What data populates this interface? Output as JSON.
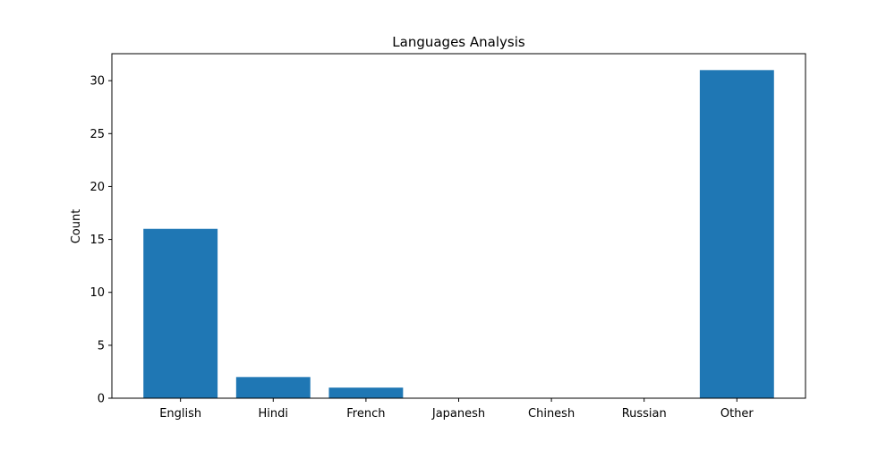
{
  "chart_data": {
    "type": "bar",
    "title": "Languages Analysis",
    "xlabel": "",
    "ylabel": "Count",
    "categories": [
      "English",
      "Hindi",
      "French",
      "Japanesh",
      "Chinesh",
      "Russian",
      "Other"
    ],
    "values": [
      16,
      2,
      1,
      0,
      0,
      0,
      31
    ],
    "ylim": [
      0,
      32.55
    ],
    "yticks": [
      0,
      5,
      10,
      15,
      20,
      25,
      30
    ],
    "grid": false,
    "colors": {
      "bar": "#1f77b4",
      "axis": "#000000",
      "background": "#ffffff"
    }
  }
}
